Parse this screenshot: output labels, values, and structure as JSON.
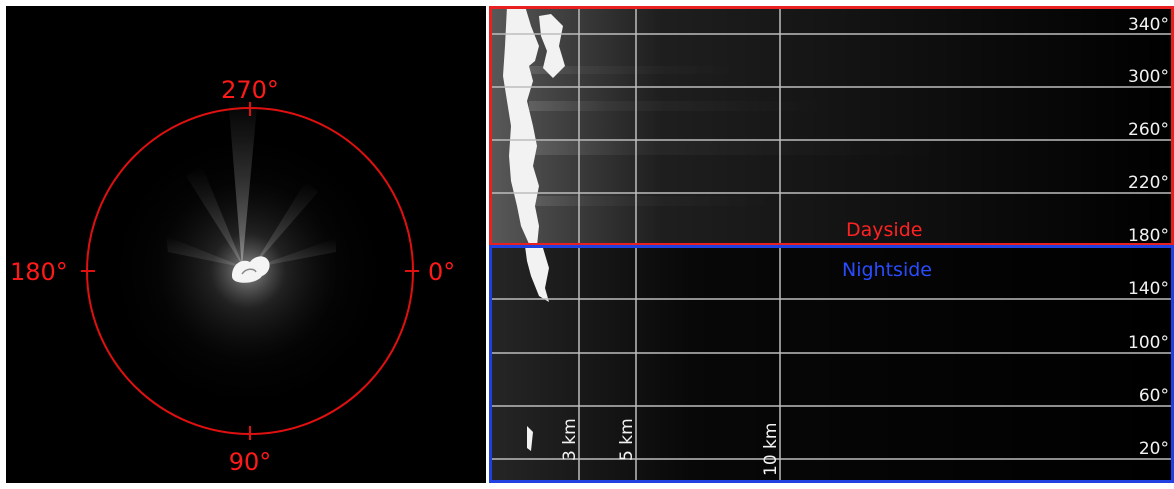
{
  "polar_view": {
    "labels": {
      "top": "270°",
      "bottom": "90°",
      "left": "180°",
      "right": "0°"
    },
    "circle_color": "#e01010"
  },
  "unwrapped_view": {
    "angle_labels": [
      "340°",
      "300°",
      "260°",
      "220°",
      "180°",
      "140°",
      "100°",
      "60°",
      "20°"
    ],
    "distance_labels": [
      "3 km",
      "5 km",
      "10 km"
    ],
    "dayside_label": "Dayside",
    "nightside_label": "Nightside",
    "dayside_color": "#e82020",
    "nightside_color": "#2040e0"
  }
}
